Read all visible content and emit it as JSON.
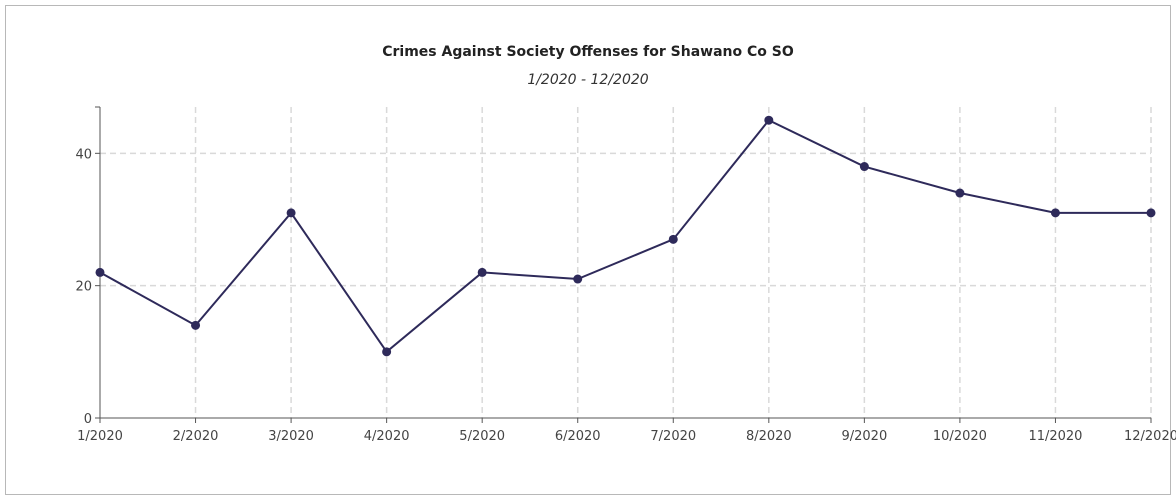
{
  "chart_data": {
    "type": "line",
    "title": "Crimes Against Society Offenses for Shawano Co SO",
    "subtitle": "1/2020 - 12/2020",
    "categories": [
      "1/2020",
      "2/2020",
      "3/2020",
      "4/2020",
      "5/2020",
      "6/2020",
      "7/2020",
      "8/2020",
      "9/2020",
      "10/2020",
      "11/2020",
      "12/2020"
    ],
    "series": [
      {
        "values": [
          22,
          14,
          31,
          10,
          22,
          21,
          27,
          45,
          38,
          34,
          31,
          31
        ],
        "color": "#2e2a5a"
      }
    ],
    "y_ticks": [
      0,
      20,
      40
    ],
    "ylim": [
      0,
      47
    ],
    "grid": true,
    "grid_color": "#d9d9d9"
  }
}
